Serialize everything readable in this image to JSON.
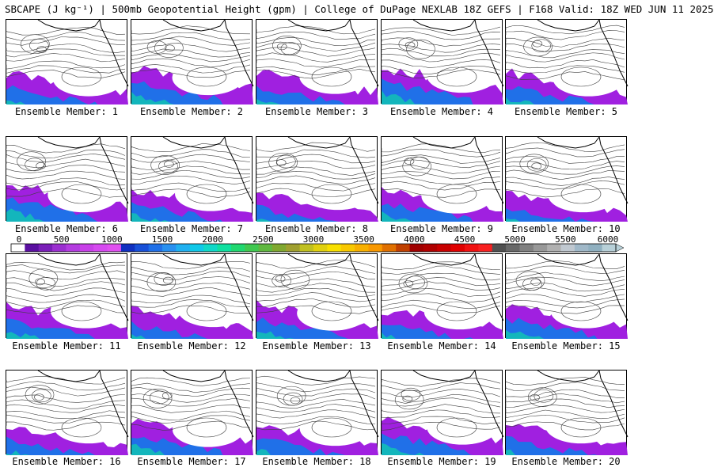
{
  "header": {
    "title": "SBCAPE (J kg⁻¹) | 500mb Geopotential Height (gpm) | College of DuPage NEXLAB 18Z GEFS | F168 Valid: 18Z WED JUN 11 2025"
  },
  "panels": [
    {
      "label": "Ensemble Member: 1"
    },
    {
      "label": "Ensemble Member: 2"
    },
    {
      "label": "Ensemble Member: 3"
    },
    {
      "label": "Ensemble Member: 4"
    },
    {
      "label": "Ensemble Member: 5"
    },
    {
      "label": "Ensemble Member: 6"
    },
    {
      "label": "Ensemble Member: 7"
    },
    {
      "label": "Ensemble Member: 8"
    },
    {
      "label": "Ensemble Member: 9"
    },
    {
      "label": "Ensemble Member: 10"
    },
    {
      "label": "Ensemble Member: 11"
    },
    {
      "label": "Ensemble Member: 12"
    },
    {
      "label": "Ensemble Member: 13"
    },
    {
      "label": "Ensemble Member: 14"
    },
    {
      "label": "Ensemble Member: 15"
    },
    {
      "label": "Ensemble Member: 16"
    },
    {
      "label": "Ensemble Member: 17"
    },
    {
      "label": "Ensemble Member: 18"
    },
    {
      "label": "Ensemble Member: 19"
    },
    {
      "label": "Ensemble Member: 20"
    }
  ],
  "colorbar": {
    "tick_labels": [
      "0",
      "500",
      "1000",
      "1500",
      "2000",
      "2500",
      "3000",
      "3500",
      "4000",
      "4500",
      "5000",
      "5500",
      "6000"
    ],
    "min": 0,
    "max": 6000,
    "colors": [
      "#ffffff",
      "#5a0fa0",
      "#7a1fb8",
      "#9b2fd0",
      "#b43ce0",
      "#c840e8",
      "#d64af0",
      "#e050f0",
      "#1030c0",
      "#1850d8",
      "#2070e8",
      "#2890f0",
      "#20b0f0",
      "#10c8e8",
      "#10d8c8",
      "#10e0a0",
      "#20d870",
      "#40c850",
      "#60b840",
      "#80a830",
      "#a0a030",
      "#c0c020",
      "#e0d010",
      "#f8e000",
      "#f8c800",
      "#f8b000",
      "#f89800",
      "#e07000",
      "#c04000",
      "#a00000",
      "#b00000",
      "#c80000",
      "#e00000",
      "#f01010",
      "#f82020",
      "#505050",
      "#686868",
      "#808080",
      "#989898",
      "#b0b0b0",
      "#c0c8d0",
      "#a0b8c8",
      "#90b0c0",
      "#b8d0d8"
    ],
    "arrow_right_color": "#b8d0d8"
  },
  "layer_colors": {
    "cape_low": "#a020e0",
    "cape_mid": "#2070e8",
    "cape_high": "#10c8b0",
    "contour": "#404040",
    "coast": "#000000"
  }
}
